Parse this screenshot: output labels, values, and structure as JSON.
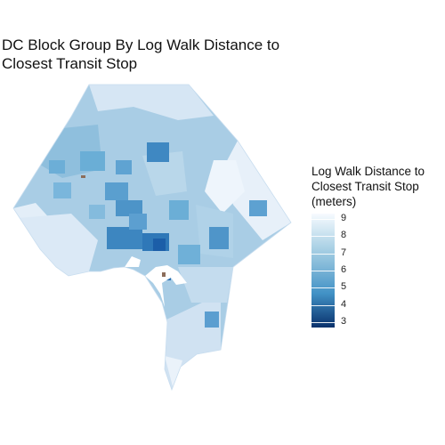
{
  "title": "DC Block Group By Log Walk Distance to\nClosest Transit Stop",
  "legend": {
    "title": "Log Walk Distance to\nClosest Transit Stop\n(meters)",
    "ticks": [
      "9",
      "8",
      "7",
      "6",
      "5",
      "4",
      "3"
    ],
    "range": [
      2.7,
      9.3
    ],
    "color_low": "#08306b",
    "color_high": "#f7fbff"
  },
  "map": {
    "region": "Washington, DC",
    "fill_variable": "Log Walk Distance to Closest Transit Stop (meters)",
    "typical_value_range": [
      6,
      8.5
    ],
    "marker_color": "#8c6d5a"
  }
}
